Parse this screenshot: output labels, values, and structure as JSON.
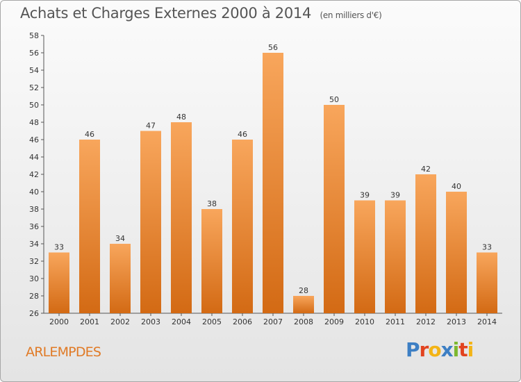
{
  "chart_data": {
    "type": "bar",
    "title": "Achats et Charges Externes 2000 à 2014",
    "subtitle": "(en milliers d'€)",
    "xlabel": "",
    "ylabel": "",
    "categories": [
      "2000",
      "2001",
      "2002",
      "2003",
      "2004",
      "2005",
      "2006",
      "2007",
      "2008",
      "2009",
      "2010",
      "2011",
      "2012",
      "2013",
      "2014"
    ],
    "values": [
      33,
      46,
      34,
      47,
      48,
      38,
      46,
      56,
      28,
      50,
      39,
      39,
      42,
      40,
      33
    ],
    "ylim": [
      26,
      58
    ],
    "yticks": [
      26,
      28,
      30,
      32,
      34,
      36,
      38,
      40,
      42,
      44,
      46,
      48,
      50,
      52,
      54,
      56,
      58
    ],
    "grid": false,
    "legend": "none",
    "bar_color": "#f0912f",
    "bar_color_light": "#f8a65c",
    "bar_color_dark": "#d36a14"
  },
  "footer": {
    "commune": "ARLEMPDES",
    "logo_letters": [
      {
        "ch": "P",
        "color": "#3d7fc4"
      },
      {
        "ch": "r",
        "color": "#e2431f"
      },
      {
        "ch": "o",
        "color": "#f3b416"
      },
      {
        "ch": "x",
        "color": "#3d7fc4"
      },
      {
        "ch": "i",
        "color": "#7cb82f"
      },
      {
        "ch": "t",
        "color": "#e2431f"
      },
      {
        "ch": "i",
        "color": "#f3b416"
      }
    ]
  }
}
